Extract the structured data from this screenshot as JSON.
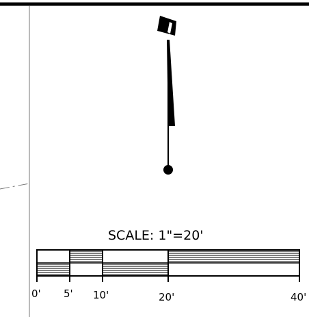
{
  "drawing": {
    "north_arrow": {
      "symbol": "north-arrow"
    },
    "scale_bar": {
      "title": "SCALE:  1\"=20'",
      "ticks": [
        "0'",
        "5'",
        "10'",
        "20'",
        "40'"
      ]
    }
  }
}
